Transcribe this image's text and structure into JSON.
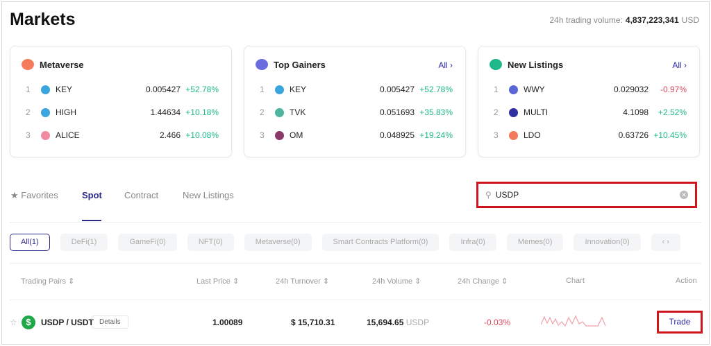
{
  "header": {
    "title": "Markets",
    "volume_label": "24h trading volume:",
    "volume_value": "4,837,223,341",
    "volume_unit": "USD"
  },
  "cards": [
    {
      "title": "Metaverse",
      "all": null,
      "rows": [
        {
          "rank": "1",
          "symbol": "KEY",
          "price": "0.005427",
          "change": "+52.78%"
        },
        {
          "rank": "2",
          "symbol": "HIGH",
          "price": "1.44634",
          "change": "+10.18%"
        },
        {
          "rank": "3",
          "symbol": "ALICE",
          "price": "2.466",
          "change": "+10.08%"
        }
      ]
    },
    {
      "title": "Top Gainers",
      "all": "All ›",
      "rows": [
        {
          "rank": "1",
          "symbol": "KEY",
          "price": "0.005427",
          "change": "+52.78%"
        },
        {
          "rank": "2",
          "symbol": "TVK",
          "price": "0.051693",
          "change": "+35.83%"
        },
        {
          "rank": "3",
          "symbol": "OM",
          "price": "0.048925",
          "change": "+19.24%"
        }
      ]
    },
    {
      "title": "New Listings",
      "all": "All ›",
      "rows": [
        {
          "rank": "1",
          "symbol": "WWY",
          "price": "0.029032",
          "change": "-0.97%"
        },
        {
          "rank": "2",
          "symbol": "MULTI",
          "price": "4.1098",
          "change": "+2.52%"
        },
        {
          "rank": "3",
          "symbol": "LDO",
          "price": "0.63726",
          "change": "+10.45%"
        }
      ]
    }
  ],
  "tabs": [
    "★ Favorites",
    "Spot",
    "Contract",
    "New Listings"
  ],
  "search": {
    "value": "USDP"
  },
  "chips": [
    "All(1)",
    "DeFi(1)",
    "GameFi(0)",
    "NFT(0)",
    "Metaverse(0)",
    "Smart Contracts Platform(0)",
    "Infra(0)",
    "Memes(0)",
    "Innovation(0)",
    "‹ ›"
  ],
  "table": {
    "headers": [
      "Trading Pairs ⇕",
      "Last Price ⇕",
      "24h Turnover ⇕",
      "24h Volume ⇕",
      "24h Change ⇕",
      "Chart",
      "Action"
    ],
    "row": {
      "pair": "USDP / USDT",
      "details": "Details",
      "last_price": "1.00089",
      "turnover": "$ 15,710.31",
      "volume": "15,694.65",
      "volume_unit": "USDP",
      "change": "-0.03%",
      "action": "Trade"
    }
  },
  "colors": {
    "accent": "#2b2a8a",
    "up": "#1fb88a",
    "down": "#e0465e",
    "highlight": "#d0141b"
  }
}
